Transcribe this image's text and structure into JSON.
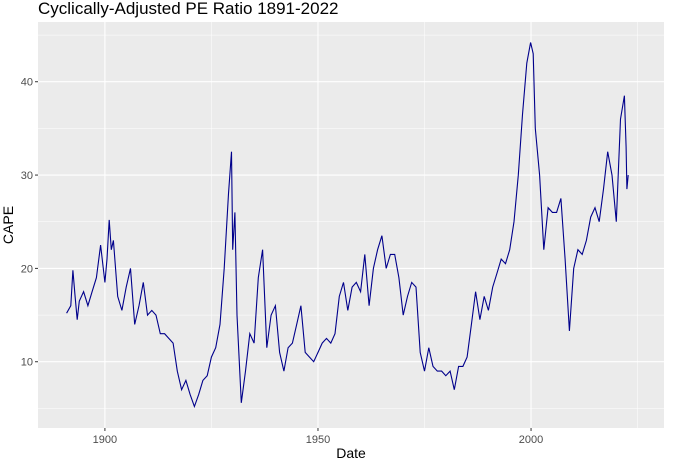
{
  "chart_data": {
    "type": "line",
    "title": "Cyclically-Adjusted PE Ratio 1891-2022",
    "xlabel": "Date",
    "ylabel": "CAPE",
    "xlim": [
      1884.3,
      2031.2
    ],
    "ylim": [
      2.9,
      46.4
    ],
    "x_ticks": [
      1900,
      1950,
      2000
    ],
    "y_ticks": [
      10,
      20,
      30,
      40
    ],
    "grid": true,
    "line_color": "#00008B",
    "background": "#EBEBEB",
    "x": [
      1891,
      1892,
      1892.5,
      1893,
      1893.5,
      1894,
      1895,
      1896,
      1897,
      1898,
      1899,
      1900,
      1900.5,
      1901,
      1901.5,
      1902,
      1903,
      1904,
      1905,
      1906,
      1907,
      1908,
      1909,
      1910,
      1911,
      1912,
      1913,
      1914,
      1915,
      1916,
      1917,
      1918,
      1919,
      1920,
      1921,
      1922,
      1923,
      1924,
      1925,
      1926,
      1927,
      1928,
      1929,
      1929.7,
      1930,
      1930.5,
      1931,
      1932,
      1933,
      1934,
      1935,
      1936,
      1937,
      1938,
      1939,
      1940,
      1941,
      1942,
      1943,
      1944,
      1945,
      1946,
      1947,
      1948,
      1949,
      1950,
      1951,
      1952,
      1953,
      1954,
      1955,
      1956,
      1957,
      1958,
      1959,
      1960,
      1961,
      1962,
      1963,
      1964,
      1965,
      1966,
      1967,
      1968,
      1969,
      1970,
      1971,
      1972,
      1973,
      1974,
      1975,
      1976,
      1977,
      1978,
      1979,
      1980,
      1981,
      1982,
      1983,
      1984,
      1985,
      1986,
      1987,
      1988,
      1989,
      1990,
      1991,
      1992,
      1993,
      1994,
      1995,
      1996,
      1997,
      1998,
      1999,
      1999.9,
      2000.5,
      2001,
      2002,
      2003,
      2004,
      2005,
      2006,
      2007,
      2008,
      2009,
      2010,
      2011,
      2012,
      2013,
      2014,
      2015,
      2016,
      2017,
      2018,
      2019,
      2020,
      2020.5,
      2021,
      2021.9,
      2022.3,
      2022.5,
      2022.8
    ],
    "y": [
      15.2,
      16,
      19.8,
      17,
      14.5,
      16.5,
      17.5,
      16,
      17.5,
      19,
      22.5,
      18.5,
      21,
      25.2,
      22,
      23,
      17,
      15.5,
      18,
      20,
      14,
      16,
      18.5,
      15,
      15.5,
      15,
      13,
      13,
      12.5,
      12,
      9,
      7,
      8,
      6.5,
      5.2,
      6.5,
      8,
      8.5,
      10.5,
      11.5,
      14,
      20,
      28,
      32.5,
      22,
      26,
      15,
      5.6,
      9,
      13,
      12,
      19,
      22,
      11.5,
      15,
      16,
      11,
      9,
      11.5,
      12,
      14,
      16,
      11,
      10.5,
      10,
      11,
      12,
      12.5,
      12,
      13,
      17,
      18.5,
      15.5,
      18,
      18.5,
      17.5,
      21.5,
      16,
      20,
      22,
      23.5,
      20,
      21.5,
      21.5,
      19,
      15,
      17,
      18.5,
      18,
      11,
      9,
      11.5,
      9.5,
      9,
      9,
      8.5,
      9,
      7,
      9.5,
      9.5,
      10.5,
      14,
      17.5,
      14.5,
      17,
      15.5,
      18,
      19.5,
      21,
      20.5,
      22,
      25,
      30,
      36.5,
      42,
      44.2,
      43,
      35,
      30,
      22,
      26.5,
      26,
      26,
      27.5,
      21,
      13.3,
      20,
      22,
      21.5,
      23,
      25.5,
      26.5,
      25,
      28.5,
      32.5,
      30,
      25,
      30.5,
      36,
      38.5,
      33,
      28.5,
      30
    ]
  }
}
